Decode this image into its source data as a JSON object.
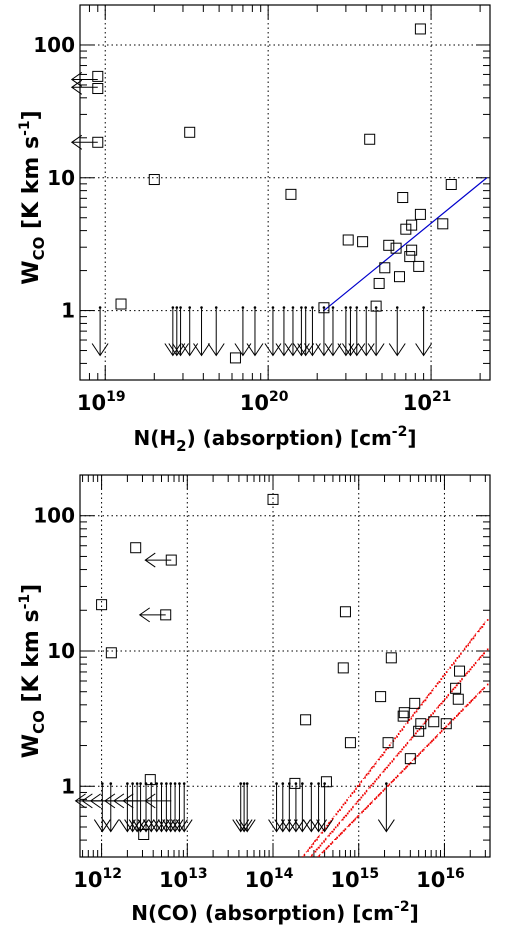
{
  "chart_data": [
    {
      "type": "scatter",
      "xlabel": "N(H2) (absorption) [cm-2]",
      "xlabel_parts": {
        "base": "N(H",
        "sub": "2",
        "rest": ") (absorption) [cm",
        "sup": "-2",
        "end": "]"
      },
      "ylabel_parts": {
        "base": "W",
        "sub": "CO",
        "rest": " [K km s",
        "sup": "-1",
        "end": "]"
      },
      "x_scale": "log",
      "y_scale": "log",
      "xlim": [
        7e+18,
        2.3e+21
      ],
      "ylim": [
        0.3,
        200
      ],
      "xticks": [
        {
          "base": "10",
          "exp": "19"
        },
        {
          "base": "10",
          "exp": "20"
        },
        {
          "base": "10",
          "exp": "21"
        }
      ],
      "yticks": [
        "1",
        "10",
        "100"
      ],
      "grid": "dotted at decades",
      "detections": [
        [
          9e+18,
          58
        ],
        [
          9e+18,
          47
        ],
        [
          9e+18,
          18.5
        ],
        [
          1.25e+19,
          1.12
        ],
        [
          2e+19,
          9.7
        ],
        [
          3.3e+19,
          22
        ],
        [
          6.3e+19,
          0.44
        ],
        [
          1.38e+20,
          7.5
        ],
        [
          2.2e+20,
          1.05
        ],
        [
          3.1e+20,
          3.4
        ],
        [
          3.8e+20,
          3.3
        ],
        [
          4.2e+20,
          19.5
        ],
        [
          4.6e+20,
          1.08
        ],
        [
          4.8e+20,
          1.6
        ],
        [
          5.2e+20,
          2.1
        ],
        [
          5.5e+20,
          3.1
        ],
        [
          6.1e+20,
          2.95
        ],
        [
          6.4e+20,
          1.8
        ],
        [
          6.7e+20,
          7.1
        ],
        [
          7e+20,
          4.1
        ],
        [
          7.4e+20,
          2.55
        ],
        [
          7.6e+20,
          2.85
        ],
        [
          7.6e+20,
          4.4
        ],
        [
          8.4e+20,
          2.15
        ],
        [
          8.6e+20,
          5.3
        ],
        [
          8.6e+20,
          132
        ],
        [
          1.18e+21,
          4.5
        ],
        [
          1.33e+21,
          8.9
        ]
      ],
      "upper_limits_x": [
        9.3e+18,
        2.6e+19,
        2.75e+19,
        2.9e+19,
        3.3e+19,
        3.9e+19,
        4.8e+19,
        7e+19,
        8.3e+19,
        1.07e+20,
        1.25e+20,
        1.42e+20,
        1.6e+20,
        1.7e+20,
        1.87e+20,
        2.2e+20,
        2.5e+20,
        3e+20,
        3.2e+20,
        3.5e+20,
        4e+20,
        4.6e+20,
        6.2e+20,
        9e+20
      ],
      "upper_limits_y": 0.72,
      "lower_limit_arrows_y": [
        55,
        48,
        18.5
      ],
      "fit_lines": [
        {
          "color": "#0000cc",
          "x": [
            2.2e+20,
            2.2e+21
          ],
          "y": [
            1.0,
            10.0
          ]
        }
      ]
    },
    {
      "type": "scatter",
      "xlabel": "N(CO) (absorption) [cm-2]",
      "xlabel_parts": {
        "base": "N(CO) (absorption) [cm",
        "sup": "-2",
        "end": "]"
      },
      "ylabel_parts": {
        "base": "W",
        "sub": "CO",
        "rest": " [K km s",
        "sup": "-1",
        "end": "]"
      },
      "x_scale": "log",
      "y_scale": "log",
      "xlim": [
        560000000000.0,
        3.4e+16
      ],
      "ylim": [
        0.3,
        200
      ],
      "xticks": [
        {
          "base": "10",
          "exp": "12"
        },
        {
          "base": "10",
          "exp": "13"
        },
        {
          "base": "10",
          "exp": "14"
        },
        {
          "base": "10",
          "exp": "15"
        },
        {
          "base": "10",
          "exp": "16"
        }
      ],
      "yticks": [
        "1",
        "10",
        "100"
      ],
      "grid": "dotted at decades",
      "detections": [
        [
          1000000000000.0,
          22
        ],
        [
          1300000000000.0,
          9.7
        ],
        [
          2500000000000.0,
          58
        ],
        [
          3100000000000.0,
          0.44
        ],
        [
          3700000000000.0,
          1.12
        ],
        [
          5600000000000.0,
          18.5
        ],
        [
          6500000000000.0,
          47
        ],
        [
          100000000000000.0,
          132
        ],
        [
          180000000000000.0,
          1.05
        ],
        [
          240000000000000.0,
          3.1
        ],
        [
          420000000000000.0,
          1.08
        ],
        [
          660000000000000.0,
          7.5
        ],
        [
          700000000000000.0,
          19.5
        ],
        [
          800000000000000.0,
          2.1
        ],
        [
          1800000000000000.0,
          4.6
        ],
        [
          2200000000000000.0,
          2.1
        ],
        [
          2400000000000000.0,
          8.9
        ],
        [
          3300000000000000.0,
          3.3
        ],
        [
          3400000000000000.0,
          3.5
        ],
        [
          4000000000000000.0,
          1.6
        ],
        [
          4500000000000000.0,
          4.1
        ],
        [
          5000000000000000.0,
          2.55
        ],
        [
          5300000000000000.0,
          2.9
        ],
        [
          7500000000000000.0,
          3.0
        ],
        [
          1.05e+16,
          2.9
        ],
        [
          1.35e+16,
          5.3
        ],
        [
          1.45e+16,
          4.4
        ],
        [
          1.5e+16,
          7.1
        ]
      ],
      "upper_limits_x": [
        1020000000000.0,
        1280000000000.0,
        2000000000000.0,
        2300000000000.0,
        2600000000000.0,
        2850000000000.0,
        3300000000000.0,
        3800000000000.0,
        4400000000000.0,
        5000000000000.0,
        5700000000000.0,
        6400000000000.0,
        7200000000000.0,
        8100000000000.0,
        9200000000000.0,
        42000000000000.0,
        46000000000000.0,
        50000000000000.0,
        110000000000000.0,
        130000000000000.0,
        155000000000000.0,
        185000000000000.0,
        220000000000000.0,
        280000000000000.0,
        340000000000000.0,
        400000000000000.0,
        2100000000000000.0
      ],
      "upper_limits_y": 0.72,
      "lower_limit_arrows": [
        [
          1000000000000.0,
          0.78
        ],
        [
          1200000000000.0,
          0.78
        ],
        [
          1500000000000.0,
          0.78
        ],
        [
          2200000000000.0,
          0.78
        ],
        [
          2800000000000.0,
          0.78
        ],
        [
          3600000000000.0,
          0.78
        ],
        [
          6500000000000.0,
          0.78
        ],
        [
          6500000000000.0,
          47
        ],
        [
          5600000000000.0,
          18.5
        ]
      ],
      "model_curves": [
        {
          "color": "#ee0000",
          "x": [
            220000000000000.0,
            3e+16
          ],
          "y": [
            0.3,
            16.5
          ]
        },
        {
          "color": "#ee0000",
          "x": [
            270000000000000.0,
            3e+16
          ],
          "y": [
            0.3,
            10.0
          ]
        },
        {
          "color": "#ee0000",
          "x": [
            330000000000000.0,
            3e+16
          ],
          "y": [
            0.3,
            5.5
          ]
        }
      ]
    }
  ]
}
